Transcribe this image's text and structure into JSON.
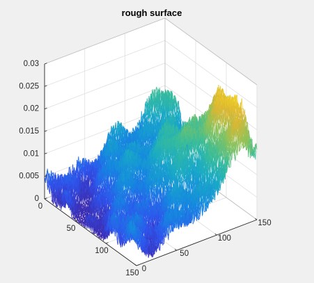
{
  "figure": {
    "background": "#f0f0f0"
  },
  "chart_data": {
    "type": "surface",
    "title": "rough surface",
    "xlabel": "",
    "ylabel": "",
    "zlabel": "",
    "xlim": [
      0,
      150
    ],
    "ylim": [
      0,
      150
    ],
    "zlim": [
      0,
      0.03
    ],
    "x_ticks": [
      "0",
      "50",
      "100",
      "150"
    ],
    "y_ticks": [
      "0",
      "50",
      "100",
      "150"
    ],
    "z_ticks": [
      "0",
      "0.005",
      "0.01",
      "0.015",
      "0.02",
      "0.025",
      "0.03"
    ],
    "grid": true,
    "box": true,
    "colormap": "parula",
    "colormap_stops": [
      "#3e26a8",
      "#2f55ee",
      "#1688e0",
      "#1aaac6",
      "#3abd99",
      "#8cc35c",
      "#dcb734",
      "#f6d923"
    ],
    "surface": {
      "grid_size": 128,
      "domain": [
        0,
        128
      ],
      "edges_only": true,
      "approx_height_samples": [
        {
          "x": 0,
          "y": 128,
          "z": 0.012
        },
        {
          "x": 0,
          "y": 0,
          "z": 0.003
        },
        {
          "x": 128,
          "y": 0,
          "z": 0.008
        },
        {
          "x": 128,
          "y": 128,
          "z": 0.014
        },
        {
          "x": 90,
          "y": 128,
          "z": 0.024
        },
        {
          "x": 64,
          "y": 64,
          "z": 0.008
        }
      ]
    }
  }
}
